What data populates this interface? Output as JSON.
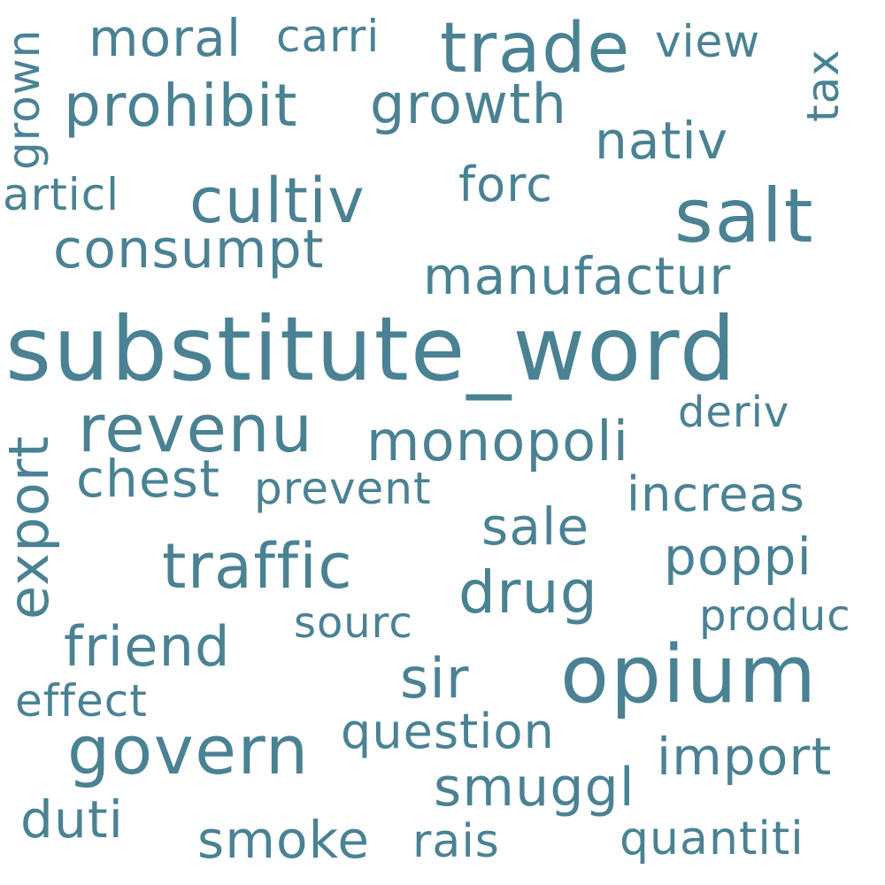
{
  "word_cloud": {
    "color": "#4a8293",
    "words": {
      "substitute_word": "substitute_word",
      "opium": "opium",
      "salt": "salt",
      "trade": "trade",
      "govern": "govern",
      "revenu": "revenu",
      "traffic": "traffic",
      "cultiv": "cultiv",
      "prohibit": "prohibit",
      "drug": "drug",
      "monopoli": "monopoli",
      "sir": "sir",
      "friend": "friend",
      "growth": "growth",
      "smuggl": "smuggl",
      "consumpt": "consumpt",
      "manufactur": "manufactur",
      "import": "import",
      "nativ": "nativ",
      "poppi": "poppi",
      "smoke": "smoke",
      "chest": "chest",
      "moral": "moral",
      "duti": "duti",
      "sale": "sale",
      "question": "question",
      "forc": "forc",
      "increas": "increas",
      "quantiti": "quantiti",
      "rais": "rais",
      "prevent": "prevent",
      "view": "view",
      "deriv": "deriv",
      "effect": "effect",
      "carri": "carri",
      "articl": "articl",
      "sourc": "sourc",
      "produc": "produc",
      "export": "export",
      "tax": "tax",
      "grown": "grown"
    }
  }
}
